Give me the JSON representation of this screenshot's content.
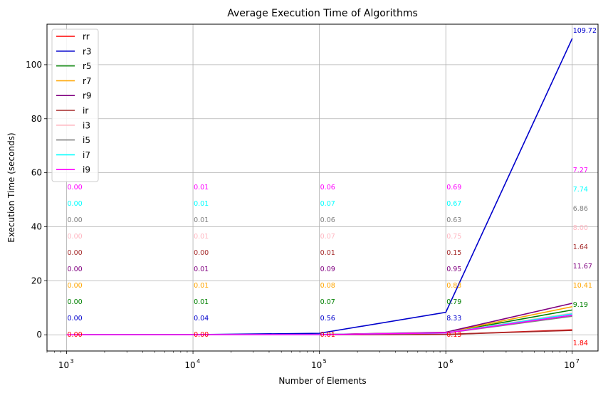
{
  "chart_data": {
    "type": "line",
    "title": "Average Execution Time of Algorithms",
    "xlabel": "Number of Elements",
    "ylabel": "Execution Time (seconds)",
    "x_scale": "log",
    "x": [
      1000,
      10000,
      100000,
      1000000,
      10000000
    ],
    "x_tick_labels": [
      "10",
      "10",
      "10",
      "10",
      "10"
    ],
    "x_tick_exponents": [
      "3",
      "4",
      "5",
      "6",
      "7"
    ],
    "xlim": [
      700,
      16000000
    ],
    "ylim": [
      -6,
      115
    ],
    "y_ticks": [
      0,
      20,
      40,
      60,
      80,
      100
    ],
    "grid": true,
    "legend_position": "top-left",
    "series": [
      {
        "name": "rr",
        "color": "#ff0000",
        "values": [
          0.0,
          0.0,
          0.01,
          0.13,
          1.84
        ],
        "labels": [
          "0.00",
          "0.00",
          "0.01",
          "0.13",
          "1.84"
        ]
      },
      {
        "name": "r3",
        "color": "#0000cc",
        "values": [
          0.0,
          0.04,
          0.56,
          8.33,
          109.72
        ],
        "labels": [
          "0.00",
          "0.04",
          "0.56",
          "8.33",
          "109.72"
        ]
      },
      {
        "name": "r5",
        "color": "#008000",
        "values": [
          0.0,
          0.01,
          0.07,
          0.79,
          9.19
        ],
        "labels": [
          "0.00",
          "0.01",
          "0.07",
          "0.79",
          "9.19"
        ]
      },
      {
        "name": "r7",
        "color": "#ffa500",
        "values": [
          0.0,
          0.01,
          0.08,
          0.83,
          10.41
        ],
        "labels": [
          "0.00",
          "0.01",
          "0.08",
          "0.83",
          "10.41"
        ]
      },
      {
        "name": "r9",
        "color": "#800080",
        "values": [
          0.0,
          0.01,
          0.09,
          0.95,
          11.67
        ],
        "labels": [
          "0.00",
          "0.01",
          "0.09",
          "0.95",
          "11.67"
        ]
      },
      {
        "name": "ir",
        "color": "#a52a2a",
        "values": [
          0.0,
          0.0,
          0.01,
          0.15,
          1.64
        ],
        "labels": [
          "0.00",
          "0.00",
          "0.01",
          "0.15",
          "1.64"
        ]
      },
      {
        "name": "i3",
        "color": "#ffb6c1",
        "values": [
          0.0,
          0.01,
          0.07,
          0.75,
          8.0
        ],
        "labels": [
          "0.00",
          "0.01",
          "0.07",
          "0.75",
          "8.00"
        ]
      },
      {
        "name": "i5",
        "color": "#808080",
        "values": [
          0.0,
          0.01,
          0.06,
          0.63,
          6.86
        ],
        "labels": [
          "0.00",
          "0.01",
          "0.06",
          "0.63",
          "6.86"
        ]
      },
      {
        "name": "i7",
        "color": "#00ffff",
        "values": [
          0.0,
          0.01,
          0.07,
          0.67,
          7.74
        ],
        "labels": [
          "0.00",
          "0.01",
          "0.07",
          "0.67",
          "7.74"
        ]
      },
      {
        "name": "i9",
        "color": "#ff00ff",
        "values": [
          0.0,
          0.01,
          0.06,
          0.69,
          7.27
        ],
        "labels": [
          "0.00",
          "0.01",
          "0.06",
          "0.69",
          "7.27"
        ]
      }
    ]
  }
}
